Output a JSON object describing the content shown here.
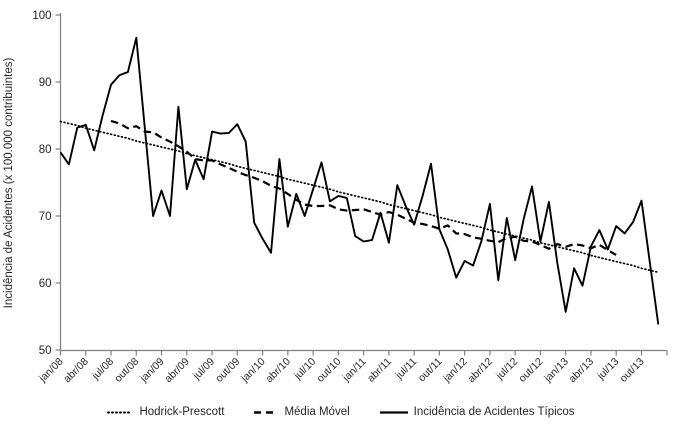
{
  "chart_data": {
    "type": "line",
    "title": "",
    "ylabel": "Incidência de Acidentes (x 100.000 contribuintes)",
    "xlabel": "",
    "ylim": [
      50,
      100
    ],
    "yticks": [
      50,
      60,
      70,
      80,
      90,
      100
    ],
    "months_total": 72,
    "x_range": [
      "jan/08",
      "dez/13"
    ],
    "x_tick_labels": [
      "jan/08",
      "abr/08",
      "jul/08",
      "out/08",
      "jan/09",
      "abr/09",
      "jul/09",
      "out/09",
      "jan/10",
      "abr/10",
      "jul/10",
      "out/10",
      "jan/11",
      "abr/11",
      "jul/11",
      "out/11",
      "jan/12",
      "abr/12",
      "jul/12",
      "out/12",
      "jan/13",
      "abr/13",
      "jul/13",
      "out/13"
    ],
    "grid": false,
    "legend_position": "bottom",
    "series": [
      {
        "name": "Hodrick-Prescott",
        "style": "dotted",
        "color": "#000000",
        "start_month": 0,
        "values": [
          84.1,
          83.8,
          83.5,
          83.1,
          82.8,
          82.5,
          82.2,
          81.9,
          81.6,
          81.2,
          80.9,
          80.6,
          80.3,
          80.0,
          79.7,
          79.3,
          79.0,
          78.7,
          78.4,
          78.1,
          77.8,
          77.4,
          77.1,
          76.8,
          76.5,
          76.2,
          75.9,
          75.5,
          75.2,
          74.9,
          74.6,
          74.3,
          74.0,
          73.6,
          73.3,
          73.0,
          72.7,
          72.4,
          72.1,
          71.7,
          71.4,
          71.1,
          70.8,
          70.5,
          70.2,
          69.8,
          69.5,
          69.2,
          68.9,
          68.6,
          68.3,
          67.9,
          67.6,
          67.3,
          67.0,
          66.7,
          66.4,
          66.0,
          65.7,
          65.4,
          65.1,
          64.8,
          64.5,
          64.1,
          63.8,
          63.5,
          63.2,
          62.9,
          62.6,
          62.2,
          61.9,
          61.6
        ]
      },
      {
        "name": "Média Móvel",
        "style": "dashed",
        "color": "#000000",
        "start_month": 6,
        "values": [
          84.2,
          83.8,
          83.1,
          83.4,
          82.6,
          82.5,
          81.7,
          81.1,
          80.4,
          79.6,
          78.5,
          78.3,
          78.3,
          77.7,
          77.2,
          76.6,
          76.1,
          75.7,
          75.2,
          74.5,
          74.1,
          73.3,
          72.4,
          71.7,
          71.5,
          71.5,
          71.6,
          71.0,
          70.8,
          70.9,
          71.0,
          70.6,
          70.2,
          70.6,
          70.2,
          69.6,
          69.0,
          68.8,
          68.5,
          68.1,
          68.6,
          67.4,
          67.3,
          66.8,
          66.6,
          66.3,
          66.1,
          66.7,
          66.9,
          66.3,
          66.2,
          65.7,
          65.1,
          65.8,
          65.4,
          65.8,
          65.6,
          65.2,
          65.7,
          64.9,
          64.2
        ]
      },
      {
        "name": "Incidência de Acidentes Típicos",
        "style": "solid",
        "color": "#000000",
        "start_month": 0,
        "values": [
          79.5,
          77.7,
          83.2,
          83.6,
          79.8,
          85.0,
          89.6,
          91.0,
          91.5,
          96.6,
          83.3,
          70.0,
          73.8,
          70.0,
          86.3,
          74.0,
          78.4,
          75.5,
          82.6,
          82.3,
          82.4,
          83.7,
          81.1,
          69.0,
          66.6,
          64.5,
          78.5,
          68.4,
          73.3,
          70.0,
          74.0,
          78.0,
          72.2,
          73.0,
          72.7,
          67.0,
          66.2,
          66.4,
          70.5,
          66.0,
          74.6,
          71.5,
          68.7,
          73.0,
          77.8,
          68.0,
          65.0,
          60.8,
          63.3,
          62.6,
          66.3,
          71.8,
          60.4,
          69.7,
          63.4,
          69.5,
          74.4,
          66.2,
          72.1,
          63.0,
          55.7,
          62.2,
          59.6,
          65.5,
          67.9,
          65.0,
          68.5,
          67.4,
          69.1,
          72.3,
          63.0,
          53.8
        ]
      }
    ]
  },
  "colors": {
    "line": "#000000",
    "axis": "#808080",
    "text": "#262626",
    "background": "#ffffff"
  }
}
